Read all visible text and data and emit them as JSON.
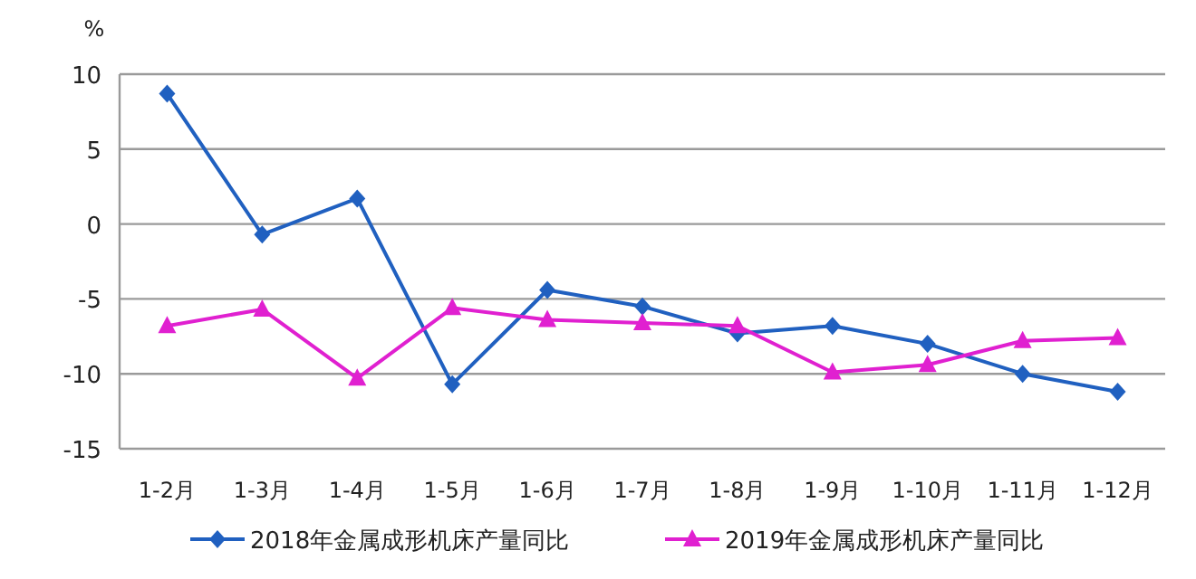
{
  "chart_data": {
    "type": "line",
    "ylabel": "%",
    "categories": [
      "1-2月",
      "1-3月",
      "1-4月",
      "1-5月",
      "1-6月",
      "1-7月",
      "1-8月",
      "1-9月",
      "1-10月",
      "1-11月",
      "1-12月"
    ],
    "series": [
      {
        "name": "2018年金属成形机床产量同比",
        "color": "#2060c0",
        "marker": "diamond",
        "values": [
          8.7,
          -0.7,
          1.7,
          -10.7,
          -4.4,
          -5.5,
          -7.3,
          -6.8,
          -8.0,
          -10.0,
          -11.2
        ]
      },
      {
        "name": "2019年金属成形机床产量同比",
        "color": "#e020d0",
        "marker": "triangle",
        "values": [
          -6.8,
          -5.7,
          -10.3,
          -5.6,
          -6.4,
          -6.6,
          -6.8,
          -9.9,
          -9.4,
          -7.8,
          -7.6
        ]
      }
    ],
    "ylim": [
      -15,
      10
    ],
    "yticks": [
      -15,
      -10,
      -5,
      0,
      5,
      10
    ],
    "grid": "y",
    "legend": "bottom",
    "line_style": "solid"
  }
}
